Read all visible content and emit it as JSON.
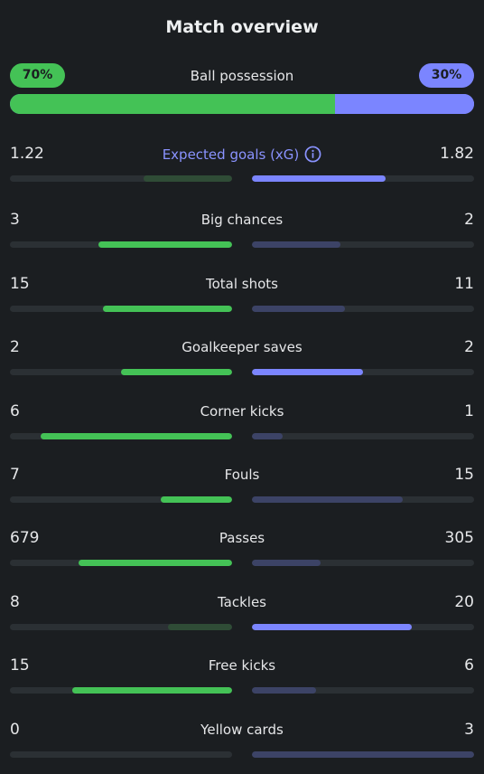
{
  "title": "Match overview",
  "possession": {
    "label": "Ball possession",
    "home_text": "70%",
    "away_text": "30%",
    "home_value": 70,
    "away_value": 30
  },
  "colors": {
    "home_strong": "#44c256",
    "home_weak": "#2f4c36",
    "away_strong": "#7b85ff",
    "away_weak": "#3c4366",
    "track": "#2b3034",
    "accent_text": "#8a93ff"
  },
  "stats": [
    {
      "label": "Expected goals (xG)",
      "home": "1.22",
      "away": "1.82",
      "home_fill": 0.4,
      "away_fill": 0.6,
      "winner": "away",
      "accent": true,
      "icon": "info-icon"
    },
    {
      "label": "Big chances",
      "home": "3",
      "away": "2",
      "home_fill": 0.6,
      "away_fill": 0.4,
      "winner": "home"
    },
    {
      "label": "Total shots",
      "home": "15",
      "away": "11",
      "home_fill": 0.58,
      "away_fill": 0.42,
      "winner": "home"
    },
    {
      "label": "Goalkeeper saves",
      "home": "2",
      "away": "2",
      "home_fill": 0.5,
      "away_fill": 0.5,
      "winner": "both"
    },
    {
      "label": "Corner kicks",
      "home": "6",
      "away": "1",
      "home_fill": 0.86,
      "away_fill": 0.14,
      "winner": "home"
    },
    {
      "label": "Fouls",
      "home": "7",
      "away": "15",
      "home_fill": 0.32,
      "away_fill": 0.68,
      "winner": "home"
    },
    {
      "label": "Passes",
      "home": "679",
      "away": "305",
      "home_fill": 0.69,
      "away_fill": 0.31,
      "winner": "home"
    },
    {
      "label": "Tackles",
      "home": "8",
      "away": "20",
      "home_fill": 0.29,
      "away_fill": 0.72,
      "winner": "away"
    },
    {
      "label": "Free kicks",
      "home": "15",
      "away": "6",
      "home_fill": 0.72,
      "away_fill": 0.29,
      "winner": "home"
    },
    {
      "label": "Yellow cards",
      "home": "0",
      "away": "3",
      "home_fill": 0.0,
      "away_fill": 1.0,
      "winner": "none"
    }
  ]
}
